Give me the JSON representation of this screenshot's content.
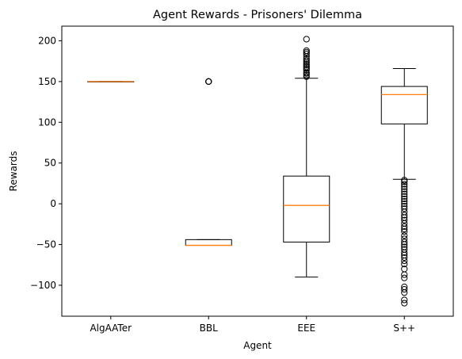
{
  "chart_data": {
    "type": "box",
    "title": "Agent Rewards - Prisoners' Dilemma",
    "xlabel": "Agent",
    "ylabel": "Rewards",
    "ylim": [
      -138,
      218
    ],
    "yticks": [
      -100,
      -50,
      0,
      50,
      100,
      150,
      200
    ],
    "categories": [
      "AlgAATer",
      "BBL",
      "EEE",
      "S++"
    ],
    "grid": false,
    "legend": "none",
    "colors": {
      "box": "#000000",
      "median": "#ff7f0e",
      "background": "#ffffff"
    },
    "boxes": [
      {
        "name": "AlgAATer",
        "whisker_low": 150,
        "q1": 150,
        "median": 150,
        "q3": 150,
        "whisker_high": 150,
        "outliers": []
      },
      {
        "name": "BBL",
        "whisker_low": -51,
        "q1": -51,
        "median": -51,
        "q3": -44,
        "whisker_high": -44,
        "outliers": [
          150,
          150,
          150,
          150
        ]
      },
      {
        "name": "EEE",
        "whisker_low": -90,
        "q1": -47,
        "median": -2,
        "q3": 34,
        "whisker_high": 154,
        "outliers": [
          156,
          158,
          160,
          161,
          164,
          166,
          168,
          170,
          172,
          174,
          176,
          178,
          181,
          184,
          186,
          188,
          202
        ]
      },
      {
        "name": "S++",
        "whisker_low": 30,
        "q1": 98,
        "median": 134,
        "q3": 144,
        "whisker_high": 166,
        "outliers": [
          29,
          27,
          24,
          21,
          18,
          15,
          12,
          9,
          6,
          3,
          0,
          -3,
          -6,
          -10,
          -14,
          -17,
          -20,
          -24,
          -28,
          -31,
          -34,
          -39,
          -43,
          -47,
          -50,
          -53,
          -56,
          -60,
          -63,
          -66,
          -70,
          -74,
          -80,
          -87,
          -91,
          -102,
          -105,
          -109,
          -118,
          -122
        ]
      }
    ]
  }
}
